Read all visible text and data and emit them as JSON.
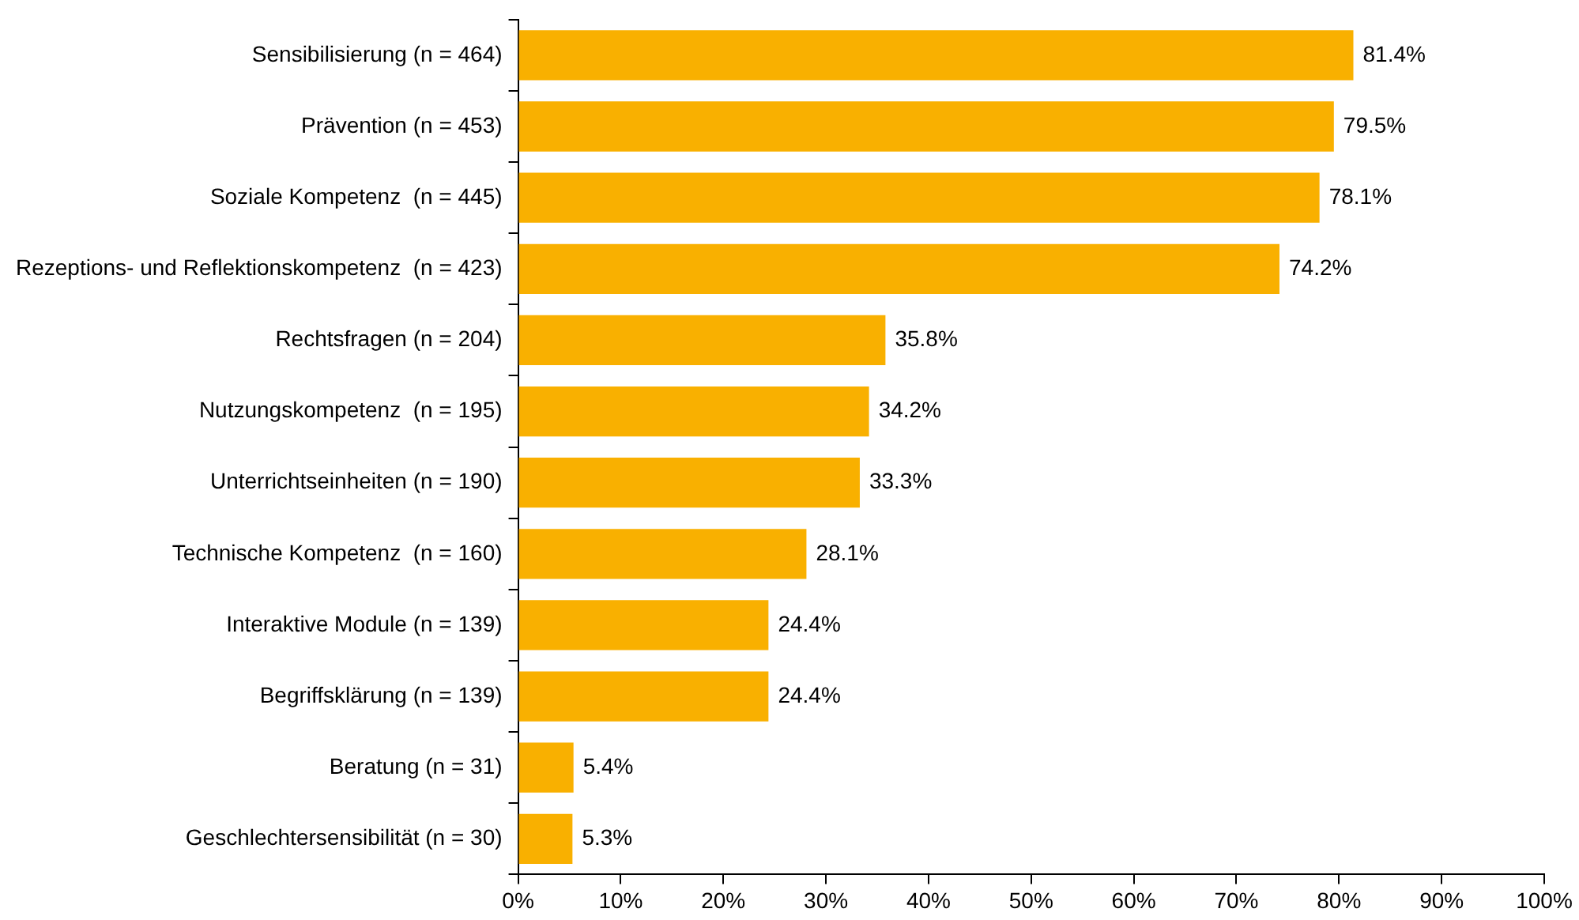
{
  "chart_data": {
    "type": "bar",
    "orientation": "horizontal",
    "categories": [
      "Sensibilisierung (n = 464)",
      "Prävention (n = 453)",
      "Soziale Kompetenz  (n = 445)",
      "Rezeptions- und Reflektionskompetenz  (n = 423)",
      "Rechtsfragen (n = 204)",
      "Nutzungskompetenz  (n = 195)",
      "Unterrichtseinheiten (n = 190)",
      "Technische Kompetenz  (n = 160)",
      "Interaktive Module (n = 139)",
      "Begriffsklärung (n = 139)",
      "Beratung (n = 31)",
      "Geschlechtersensibilität (n = 30)"
    ],
    "values": [
      81.4,
      79.5,
      78.1,
      74.2,
      35.8,
      34.2,
      33.3,
      28.1,
      24.4,
      24.4,
      5.4,
      5.3
    ],
    "value_labels": [
      "81.4%",
      "79.5%",
      "78.1%",
      "74.2%",
      "35.8%",
      "34.2%",
      "33.3%",
      "28.1%",
      "24.4%",
      "24.4%",
      "5.4%",
      "5.3%"
    ],
    "color": "#f9b000",
    "xlim": [
      0,
      100
    ],
    "xticks": [
      {
        "value": 0,
        "label": "0%"
      },
      {
        "value": 10,
        "label": "10%"
      },
      {
        "value": 20,
        "label": "20%"
      },
      {
        "value": 30,
        "label": "30%"
      },
      {
        "value": 40,
        "label": "40%"
      },
      {
        "value": 50,
        "label": "50%"
      },
      {
        "value": 60,
        "label": "60%"
      },
      {
        "value": 70,
        "label": "70%"
      },
      {
        "value": 80,
        "label": "80%"
      },
      {
        "value": 90,
        "label": "90%"
      },
      {
        "value": 100,
        "label": "100%"
      }
    ],
    "grid": false,
    "legend": false
  }
}
